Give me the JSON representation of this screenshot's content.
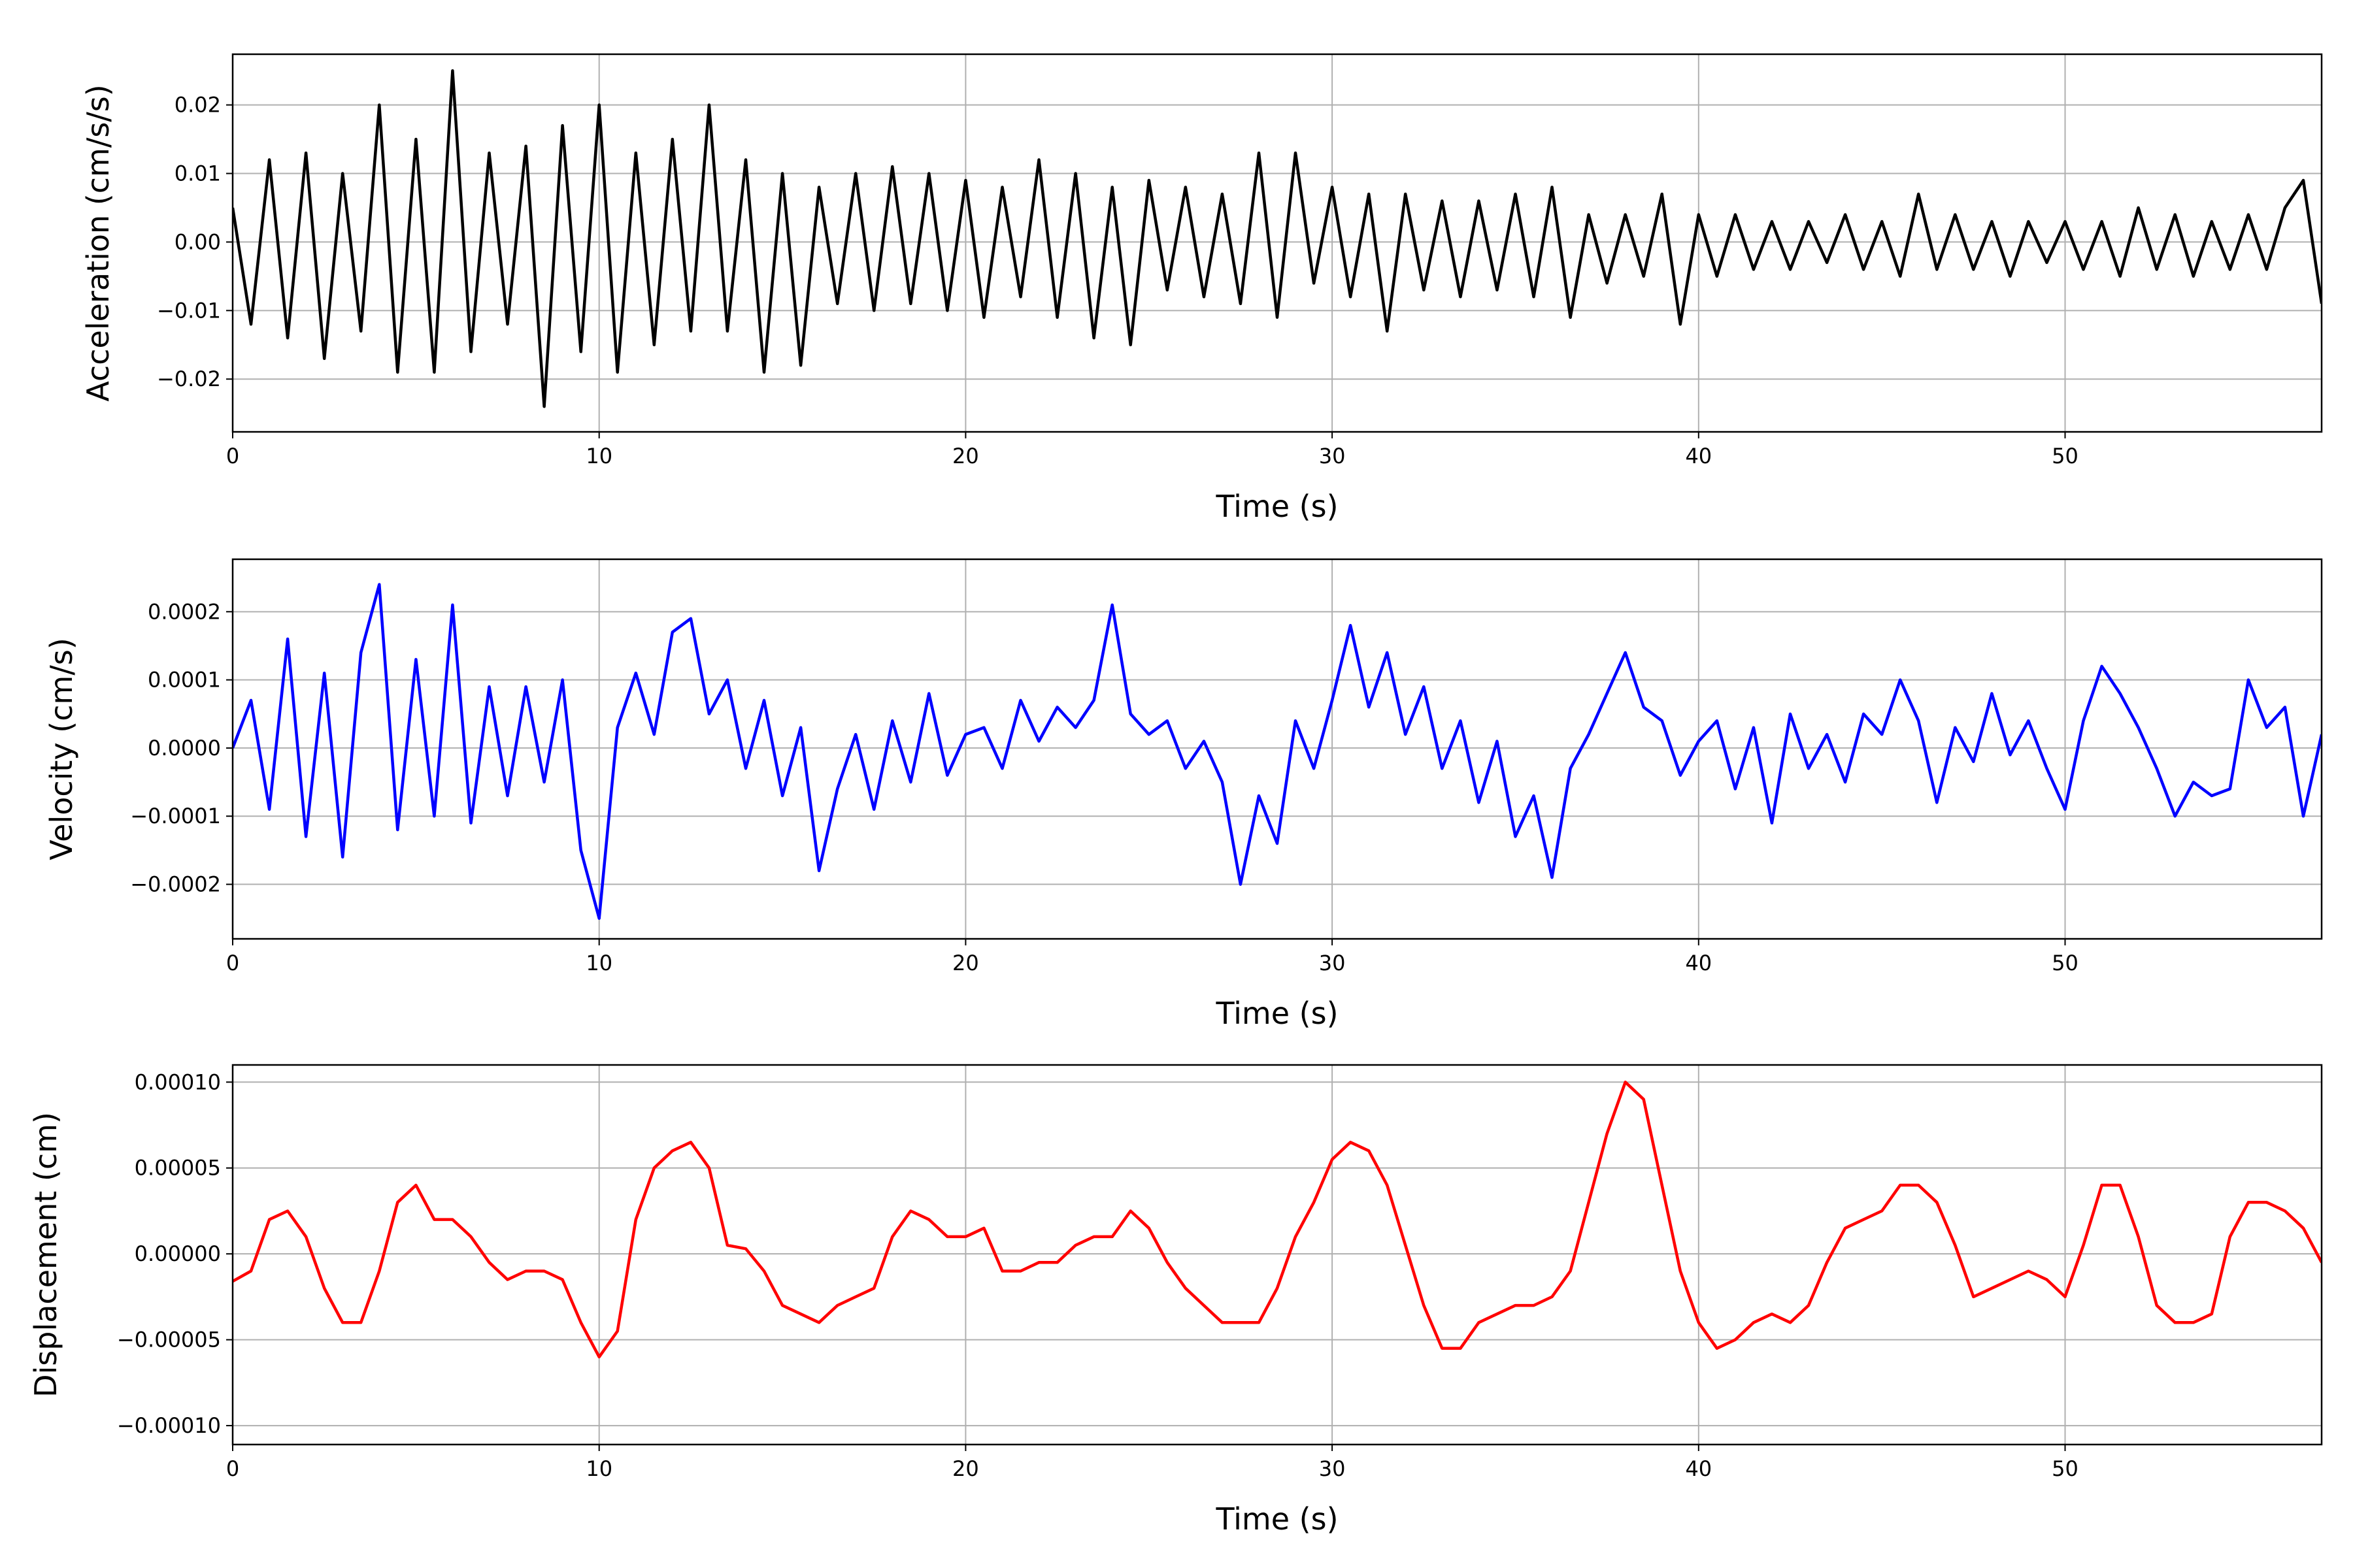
{
  "chart_data": [
    {
      "type": "line",
      "ylabel": "Acceleration (cm/s/s)",
      "xlabel": "Time (s)",
      "color": "#000000",
      "grid": true,
      "xlim": [
        0,
        57
      ],
      "xticks": [
        0,
        10,
        20,
        30,
        40,
        50
      ],
      "ylim": [
        -0.0277,
        0.0274
      ],
      "yticks": [
        {
          "value": -0.02,
          "label": "−0.02"
        },
        {
          "value": -0.01,
          "label": "−0.01"
        },
        {
          "value": 0,
          "label": "0.00"
        },
        {
          "value": 0.01,
          "label": "0.01"
        },
        {
          "value": 0.02,
          "label": "0.02"
        }
      ],
      "x": [
        0,
        0.5,
        1,
        1.5,
        2,
        2.5,
        3,
        3.5,
        4,
        4.5,
        5,
        5.5,
        6,
        6.5,
        7,
        7.5,
        8,
        8.5,
        9,
        9.5,
        10,
        10.5,
        11,
        11.5,
        12,
        12.5,
        13,
        13.5,
        14,
        14.5,
        15,
        15.5,
        16,
        16.5,
        17,
        17.5,
        18,
        18.5,
        19,
        19.5,
        20,
        20.5,
        21,
        21.5,
        22,
        22.5,
        23,
        23.5,
        24,
        24.5,
        25,
        25.5,
        26,
        26.5,
        27,
        27.5,
        28,
        28.5,
        29,
        29.5,
        30,
        30.5,
        31,
        31.5,
        32,
        32.5,
        33,
        33.5,
        34,
        34.5,
        35,
        35.5,
        36,
        36.5,
        37,
        37.5,
        38,
        38.5,
        39,
        39.5,
        40,
        40.5,
        41,
        41.5,
        42,
        42.5,
        43,
        43.5,
        44,
        44.5,
        45,
        45.5,
        46,
        46.5,
        47,
        47.5,
        48,
        48.5,
        49,
        49.5,
        50,
        50.5,
        51,
        51.5,
        52,
        52.5,
        53,
        53.5,
        54,
        54.5,
        55,
        55.5,
        56,
        56.5,
        57
      ],
      "values": [
        0.005,
        -0.012,
        0.012,
        -0.014,
        0.013,
        -0.017,
        0.01,
        -0.013,
        0.02,
        -0.019,
        0.015,
        -0.019,
        0.025,
        -0.016,
        0.013,
        -0.012,
        0.014,
        -0.024,
        0.017,
        -0.016,
        0.02,
        -0.019,
        0.013,
        -0.015,
        0.015,
        -0.013,
        0.02,
        -0.013,
        0.012,
        -0.019,
        0.01,
        -0.018,
        0.008,
        -0.009,
        0.01,
        -0.01,
        0.011,
        -0.009,
        0.01,
        -0.01,
        0.009,
        -0.011,
        0.008,
        -0.008,
        0.012,
        -0.011,
        0.01,
        -0.014,
        0.008,
        -0.015,
        0.009,
        -0.007,
        0.008,
        -0.008,
        0.007,
        -0.009,
        0.013,
        -0.011,
        0.013,
        -0.006,
        0.008,
        -0.008,
        0.007,
        -0.013,
        0.007,
        -0.007,
        0.006,
        -0.008,
        0.006,
        -0.007,
        0.007,
        -0.008,
        0.008,
        -0.011,
        0.004,
        -0.006,
        0.004,
        -0.005,
        0.007,
        -0.012,
        0.004,
        -0.005,
        0.004,
        -0.004,
        0.003,
        -0.004,
        0.003,
        -0.003,
        0.004,
        -0.004,
        0.003,
        -0.005,
        0.007,
        -0.004,
        0.004,
        -0.004,
        0.003,
        -0.005,
        0.003,
        -0.003,
        0.003,
        -0.004,
        0.003,
        -0.005,
        0.005,
        -0.004,
        0.004,
        -0.005,
        0.003,
        -0.004,
        0.004,
        -0.004,
        0.005,
        0.009,
        -0.009
      ]
    },
    {
      "type": "line",
      "ylabel": "Velocity (cm/s)",
      "xlabel": "Time (s)",
      "color": "#0000ff",
      "grid": true,
      "xlim": [
        0,
        57
      ],
      "xticks": [
        0,
        10,
        20,
        30,
        40,
        50
      ],
      "ylim": [
        -0.00028,
        0.000277
      ],
      "yticks": [
        {
          "value": -0.0002,
          "label": "−0.0002"
        },
        {
          "value": -0.0001,
          "label": "−0.0001"
        },
        {
          "value": 0,
          "label": "0.0000"
        },
        {
          "value": 0.0001,
          "label": "0.0001"
        },
        {
          "value": 0.0002,
          "label": "0.0002"
        }
      ],
      "x": [
        0,
        0.5,
        1,
        1.5,
        2,
        2.5,
        3,
        3.5,
        4,
        4.5,
        5,
        5.5,
        6,
        6.5,
        7,
        7.5,
        8,
        8.5,
        9,
        9.5,
        10,
        10.5,
        11,
        11.5,
        12,
        12.5,
        13,
        13.5,
        14,
        14.5,
        15,
        15.5,
        16,
        16.5,
        17,
        17.5,
        18,
        18.5,
        19,
        19.5,
        20,
        20.5,
        21,
        21.5,
        22,
        22.5,
        23,
        23.5,
        24,
        24.5,
        25,
        25.5,
        26,
        26.5,
        27,
        27.5,
        28,
        28.5,
        29,
        29.5,
        30,
        30.5,
        31,
        31.5,
        32,
        32.5,
        33,
        33.5,
        34,
        34.5,
        35,
        35.5,
        36,
        36.5,
        37,
        37.5,
        38,
        38.5,
        39,
        39.5,
        40,
        40.5,
        41,
        41.5,
        42,
        42.5,
        43,
        43.5,
        44,
        44.5,
        45,
        45.5,
        46,
        46.5,
        47,
        47.5,
        48,
        48.5,
        49,
        49.5,
        50,
        50.5,
        51,
        51.5,
        52,
        52.5,
        53,
        53.5,
        54,
        54.5,
        55,
        55.5,
        56,
        56.5,
        57
      ],
      "values": [
        0,
        7e-05,
        -9e-05,
        0.00016,
        -0.00013,
        0.00011,
        -0.00016,
        0.00014,
        0.00024,
        -0.00012,
        0.00013,
        -0.0001,
        0.00021,
        -0.00011,
        9e-05,
        -7e-05,
        9e-05,
        -5e-05,
        0.0001,
        -0.00015,
        -0.00025,
        3e-05,
        0.00011,
        2e-05,
        0.00017,
        0.00019,
        5e-05,
        0.0001,
        -3e-05,
        7e-05,
        -7e-05,
        3e-05,
        -0.00018,
        -6e-05,
        2e-05,
        -9e-05,
        4e-05,
        -5e-05,
        8e-05,
        -4e-05,
        2e-05,
        3e-05,
        -3e-05,
        7e-05,
        1e-05,
        6e-05,
        3e-05,
        7e-05,
        0.00021,
        5e-05,
        2e-05,
        4e-05,
        -3e-05,
        1e-05,
        -5e-05,
        -0.0002,
        -7e-05,
        -0.00014,
        4e-05,
        -3e-05,
        7e-05,
        0.00018,
        6e-05,
        0.00014,
        2e-05,
        9e-05,
        -3e-05,
        4e-05,
        -8e-05,
        1e-05,
        -0.00013,
        -7e-05,
        -0.00019,
        -3e-05,
        2e-05,
        8e-05,
        0.00014,
        6e-05,
        4e-05,
        -4e-05,
        1e-05,
        4e-05,
        -6e-05,
        3e-05,
        -0.00011,
        5e-05,
        -3e-05,
        2e-05,
        -5e-05,
        5e-05,
        2e-05,
        0.0001,
        4e-05,
        -8e-05,
        3e-05,
        -2e-05,
        8e-05,
        -1e-05,
        4e-05,
        -3e-05,
        -9e-05,
        4e-05,
        0.00012,
        8e-05,
        3e-05,
        -3e-05,
        -0.0001,
        -5e-05,
        -7e-05,
        -6e-05,
        0.0001,
        3e-05,
        6e-05,
        -0.0001,
        2e-05
      ]
    },
    {
      "type": "line",
      "ylabel": "Displacement (cm)",
      "xlabel": "Time (s)",
      "color": "#ff0000",
      "grid": true,
      "xlim": [
        0,
        57
      ],
      "xticks": [
        0,
        10,
        20,
        30,
        40,
        50
      ],
      "ylim": [
        -0.000111,
        0.00011
      ],
      "yticks": [
        {
          "value": -0.0001,
          "label": "−0.00010"
        },
        {
          "value": -5e-05,
          "label": "−0.00005"
        },
        {
          "value": 0,
          "label": "0.00000"
        },
        {
          "value": 5e-05,
          "label": "0.00005"
        },
        {
          "value": 0.0001,
          "label": "0.00010"
        }
      ],
      "x": [
        0,
        0.5,
        1,
        1.5,
        2,
        2.5,
        3,
        3.5,
        4,
        4.5,
        5,
        5.5,
        6,
        6.5,
        7,
        7.5,
        8,
        8.5,
        9,
        9.5,
        10,
        10.5,
        11,
        11.5,
        12,
        12.5,
        13,
        13.5,
        14,
        14.5,
        15,
        15.5,
        16,
        16.5,
        17,
        17.5,
        18,
        18.5,
        19,
        19.5,
        20,
        20.5,
        21,
        21.5,
        22,
        22.5,
        23,
        23.5,
        24,
        24.5,
        25,
        25.5,
        26,
        26.5,
        27,
        27.5,
        28,
        28.5,
        29,
        29.5,
        30,
        30.5,
        31,
        31.5,
        32,
        32.5,
        33,
        33.5,
        34,
        34.5,
        35,
        35.5,
        36,
        36.5,
        37,
        37.5,
        38,
        38.5,
        39,
        39.5,
        40,
        40.5,
        41,
        41.5,
        42,
        42.5,
        43,
        43.5,
        44,
        44.5,
        45,
        45.5,
        46,
        46.5,
        47,
        47.5,
        48,
        48.5,
        49,
        49.5,
        50,
        50.5,
        51,
        51.5,
        52,
        52.5,
        53,
        53.5,
        54,
        54.5,
        55,
        55.5,
        56,
        56.5,
        57
      ],
      "values": [
        -1.6e-05,
        -1e-05,
        2e-05,
        2.5e-05,
        1e-05,
        -2e-05,
        -4e-05,
        -4e-05,
        -1e-05,
        3e-05,
        4e-05,
        2e-05,
        2e-05,
        1e-05,
        -5e-06,
        -1.5e-05,
        -1e-05,
        -1e-05,
        -1.5e-05,
        -4e-05,
        -6e-05,
        -4.5e-05,
        2e-05,
        5e-05,
        6e-05,
        6.5e-05,
        5e-05,
        5e-06,
        3e-06,
        -1e-05,
        -3e-05,
        -3.5e-05,
        -4e-05,
        -3e-05,
        -2.5e-05,
        -2e-05,
        1e-05,
        2.5e-05,
        2e-05,
        1e-05,
        1e-05,
        1.5e-05,
        -1e-05,
        -1e-05,
        -5e-06,
        -5e-06,
        5e-06,
        1e-05,
        1e-05,
        2.5e-05,
        1.5e-05,
        -5e-06,
        -2e-05,
        -3e-05,
        -4e-05,
        -4e-05,
        -4e-05,
        -2e-05,
        1e-05,
        3e-05,
        5.5e-05,
        6.5e-05,
        6e-05,
        4e-05,
        5e-06,
        -3e-05,
        -5.5e-05,
        -5.5e-05,
        -4e-05,
        -3.5e-05,
        -3e-05,
        -3e-05,
        -2.5e-05,
        -1e-05,
        3e-05,
        7e-05,
        0.0001,
        9e-05,
        4e-05,
        -1e-05,
        -4e-05,
        -5.5e-05,
        -5e-05,
        -4e-05,
        -3.5e-05,
        -4e-05,
        -3e-05,
        -5e-06,
        1.5e-05,
        2e-05,
        2.5e-05,
        4e-05,
        4e-05,
        3e-05,
        5e-06,
        -2.5e-05,
        -2e-05,
        -1.5e-05,
        -1e-05,
        -1.5e-05,
        -2.5e-05,
        5e-06,
        4e-05,
        4e-05,
        1e-05,
        -3e-05,
        -4e-05,
        -4e-05,
        -3.5e-05,
        1e-05,
        3e-05,
        3e-05,
        2.5e-05,
        1.5e-05,
        -5e-06
      ]
    }
  ]
}
